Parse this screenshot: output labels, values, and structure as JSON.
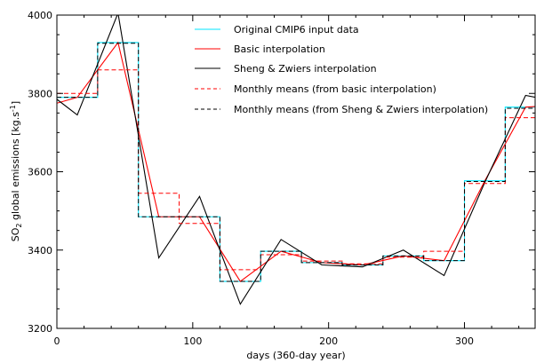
{
  "chart_data": {
    "type": "line",
    "xlabel": "days (360-day year)",
    "ylabel_main": "SO",
    "ylabel_sub": "2",
    "ylabel_rest": " global emissions [kg.s",
    "ylabel_sup": "-1",
    "ylabel_end": "]",
    "xlim": [
      0,
      352
    ],
    "ylim": [
      3200,
      4000
    ],
    "xticks": [
      0,
      100,
      200,
      300
    ],
    "yticks": [
      3200,
      3400,
      3600,
      3800,
      4000
    ],
    "grid": false,
    "legend_position": "top-right",
    "series": [
      {
        "name": "Original CMIP6 input data",
        "color": "#00e5ff",
        "dash": "solid",
        "step": true,
        "x": [
          0,
          30,
          60,
          90,
          120,
          150,
          180,
          210,
          240,
          270,
          300,
          330,
          360
        ],
        "y": [
          3790,
          3930,
          3485,
          3485,
          3320,
          3397,
          3368,
          3362,
          3385,
          3373,
          3577,
          3765,
          3765
        ]
      },
      {
        "name": "Basic interpolation",
        "color": "#ff0000",
        "dash": "solid",
        "step": false,
        "x": [
          0,
          15,
          45,
          75,
          105,
          135,
          165,
          195,
          225,
          255,
          285,
          315,
          345,
          360
        ],
        "y": [
          3775,
          3790,
          3930,
          3485,
          3485,
          3320,
          3397,
          3368,
          3362,
          3385,
          3373,
          3577,
          3765,
          3768
        ]
      },
      {
        "name": "Sheng & Zwiers interpolation",
        "color": "#000000",
        "dash": "solid",
        "step": false,
        "x": [
          0,
          15,
          45,
          75,
          105,
          135,
          165,
          195,
          225,
          255,
          285,
          315,
          345,
          360
        ],
        "y": [
          3785,
          3745,
          4005,
          3380,
          3537,
          3262,
          3427,
          3362,
          3357,
          3400,
          3335,
          3573,
          3795,
          3785
        ]
      },
      {
        "name": "Monthly means (from basic interpolation)",
        "color": "#ff0000",
        "dash": "dashed",
        "step": true,
        "x": [
          0,
          30,
          60,
          90,
          120,
          150,
          180,
          210,
          240,
          270,
          300,
          330,
          360
        ],
        "y": [
          3800,
          3860,
          3545,
          3468,
          3350,
          3388,
          3372,
          3365,
          3382,
          3397,
          3570,
          3738,
          3738
        ]
      },
      {
        "name": "Monthly means (from Sheng & Zwiers interpolation)",
        "color": "#000000",
        "dash": "dashed",
        "step": true,
        "x": [
          0,
          30,
          60,
          90,
          120,
          150,
          180,
          210,
          240,
          270,
          300,
          330,
          360
        ],
        "y": [
          3790,
          3928,
          3485,
          3485,
          3320,
          3397,
          3368,
          3362,
          3385,
          3373,
          3575,
          3762,
          3762
        ]
      }
    ]
  }
}
